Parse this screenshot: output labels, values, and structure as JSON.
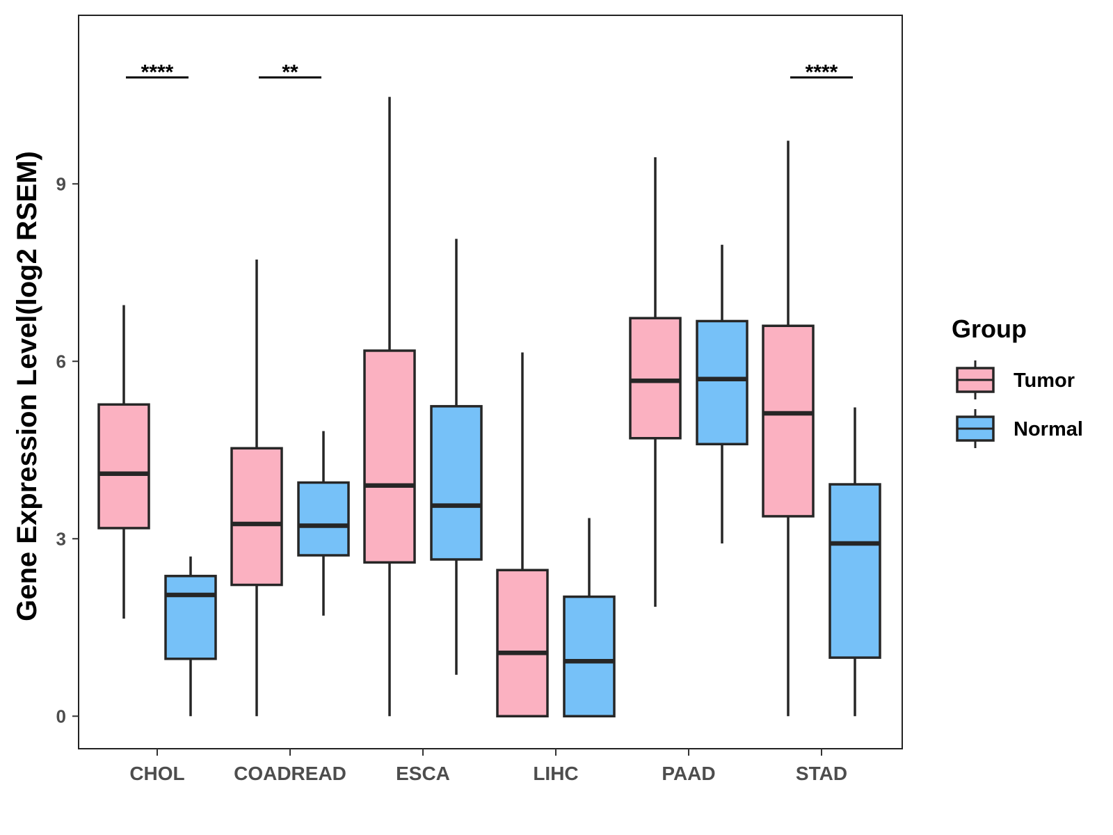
{
  "chart_data": {
    "type": "boxplot",
    "title": "",
    "ylabel": "Gene Expression Level(log2 RSEM)",
    "xlabel": "",
    "ylim": [
      -0.55,
      11.85
    ],
    "yticks": [
      0,
      3,
      6,
      9
    ],
    "ytick_labels": [
      "0",
      "3",
      "6",
      "9"
    ],
    "categories": [
      "CHOL",
      "COADREAD",
      "ESCA",
      "LIHC",
      "PAAD",
      "STAD"
    ],
    "legend": {
      "title": "Group",
      "position": "right",
      "entries": [
        {
          "label": "Tumor",
          "color": "#FBB1C1"
        },
        {
          "label": "Normal",
          "color": "#76C1F8"
        }
      ]
    },
    "series": [
      {
        "name": "Tumor",
        "color": "#FBB1C1",
        "boxes": [
          {
            "category": "CHOL",
            "whisker_low": 1.65,
            "q1": 3.18,
            "median": 4.1,
            "q3": 5.27,
            "whisker_high": 6.95
          },
          {
            "category": "COADREAD",
            "whisker_low": 0.0,
            "q1": 2.22,
            "median": 3.25,
            "q3": 4.53,
            "whisker_high": 7.72
          },
          {
            "category": "ESCA",
            "whisker_low": 0.0,
            "q1": 2.6,
            "median": 3.9,
            "q3": 6.18,
            "whisker_high": 10.47
          },
          {
            "category": "LIHC",
            "whisker_low": 0.0,
            "q1": 0.0,
            "median": 1.07,
            "q3": 2.47,
            "whisker_high": 6.15
          },
          {
            "category": "PAAD",
            "whisker_low": 1.85,
            "q1": 4.7,
            "median": 5.67,
            "q3": 6.73,
            "whisker_high": 9.45
          },
          {
            "category": "STAD",
            "whisker_low": 0.0,
            "q1": 3.38,
            "median": 5.12,
            "q3": 6.6,
            "whisker_high": 9.73
          }
        ]
      },
      {
        "name": "Normal",
        "color": "#76C1F8",
        "boxes": [
          {
            "category": "CHOL",
            "whisker_low": 0.0,
            "q1": 0.97,
            "median": 2.05,
            "q3": 2.37,
            "whisker_high": 2.7
          },
          {
            "category": "COADREAD",
            "whisker_low": 1.7,
            "q1": 2.72,
            "median": 3.22,
            "q3": 3.95,
            "whisker_high": 4.82
          },
          {
            "category": "ESCA",
            "whisker_low": 0.7,
            "q1": 2.65,
            "median": 3.56,
            "q3": 5.24,
            "whisker_high": 8.07
          },
          {
            "category": "LIHC",
            "whisker_low": 0.0,
            "q1": 0.0,
            "median": 0.93,
            "q3": 2.02,
            "whisker_high": 3.35
          },
          {
            "category": "PAAD",
            "whisker_low": 2.92,
            "q1": 4.6,
            "median": 5.7,
            "q3": 6.68,
            "whisker_high": 7.97
          },
          {
            "category": "STAD",
            "whisker_low": 0.0,
            "q1": 0.99,
            "median": 2.92,
            "q3": 3.92,
            "whisker_high": 5.22
          }
        ]
      }
    ],
    "significance": [
      {
        "category": "CHOL",
        "label": "****",
        "y": 10.8
      },
      {
        "category": "COADREAD",
        "label": "**",
        "y": 10.8
      },
      {
        "category": "STAD",
        "label": "****",
        "y": 10.8
      }
    ]
  }
}
